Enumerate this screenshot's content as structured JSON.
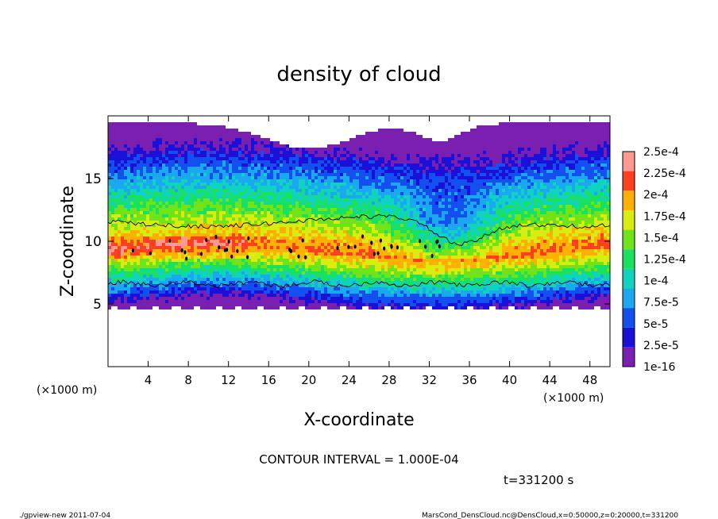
{
  "chart_data": {
    "type": "heatmap",
    "title": "density of cloud",
    "xlabel": "X-coordinate",
    "ylabel": "Z-coordinate",
    "x_unit_left": "(×1000 m)",
    "x_unit_right": "(×1000 m)",
    "xlim": [
      0,
      50
    ],
    "ylim": [
      0,
      20
    ],
    "xticks": [
      4,
      8,
      12,
      16,
      20,
      24,
      28,
      32,
      36,
      40,
      44,
      48
    ],
    "yticks": [
      5,
      10,
      15
    ],
    "colorbar": {
      "levels": [
        "1e-16",
        "2.5e-5",
        "5e-5",
        "7.5e-5",
        "1e-4",
        "1.25e-4",
        "1.5e-4",
        "1.75e-4",
        "2e-4",
        "2.25e-4",
        "2.5e-4"
      ],
      "colors": [
        "#7a1fb0",
        "#1a10d8",
        "#1450f0",
        "#1aa8f0",
        "#10d2c0",
        "#18e060",
        "#70e418",
        "#d8ec10",
        "#ffb000",
        "#ff4020",
        "#ff9890"
      ]
    },
    "cloud_bounds_z": {
      "x": [
        0,
        4,
        8,
        12,
        16,
        20,
        24,
        28,
        32,
        36,
        40,
        44,
        48,
        50
      ],
      "bottom": [
        4.6,
        4.7,
        4.6,
        4.7,
        4.6,
        4.6,
        4.7,
        4.6,
        4.5,
        4.6,
        4.6,
        4.6,
        4.6,
        4.5
      ],
      "top": [
        19.5,
        19.2,
        19.4,
        19.5,
        19.5,
        19.5,
        19.4,
        19.5,
        19.5,
        19.4,
        19.5,
        19.5,
        19.4,
        19.5
      ]
    },
    "contour_interval": "CONTOUR INTERVAL = 1.000E-04",
    "time_label": "t=331200 s"
  },
  "footer": {
    "left": "./gpview-new  2011-07-04",
    "right": "MarsCond_DensCloud.nc@DensCloud,x=0:50000,z=0:20000,t=331200"
  }
}
